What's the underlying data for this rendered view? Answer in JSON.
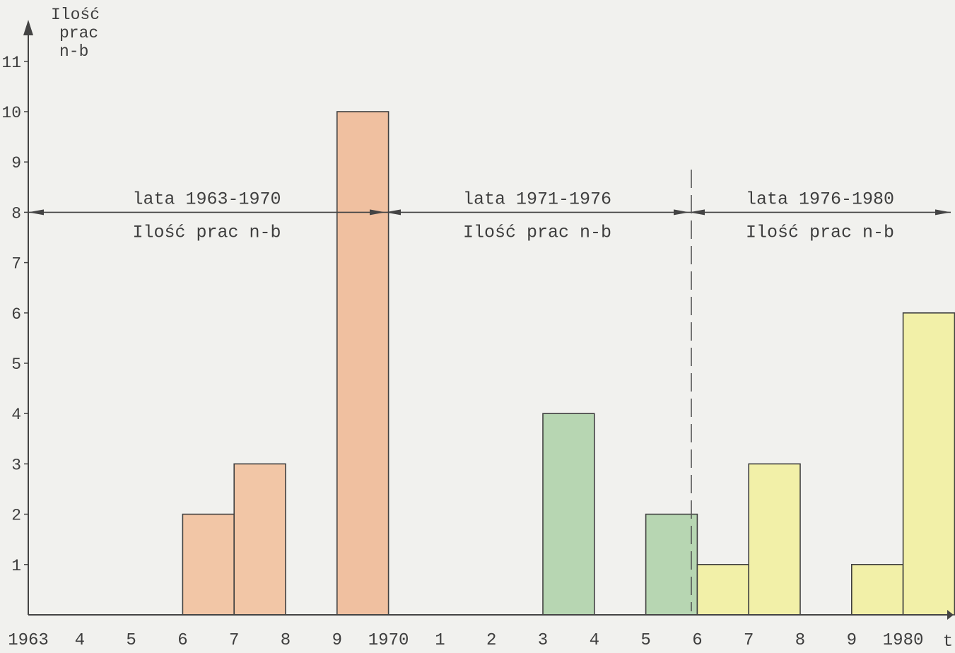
{
  "chart_data": {
    "type": "bar",
    "ylabel_lines": [
      "Ilość",
      "prac",
      "n-b"
    ],
    "xlabel": "t",
    "x_tick_labels": [
      "1963",
      "4",
      "5",
      "6",
      "7",
      "8",
      "9",
      "1970",
      "1",
      "2",
      "3",
      "4",
      "5",
      "6",
      "7",
      "8",
      "9",
      "1980"
    ],
    "y_tick_labels": [
      "1",
      "2",
      "3",
      "4",
      "5",
      "6",
      "7",
      "8",
      "9",
      "10",
      "11"
    ],
    "y_range": [
      0,
      11
    ],
    "bars": [
      {
        "year": 1967,
        "value": 2,
        "color": "#f2c6a6"
      },
      {
        "year": 1968,
        "value": 3,
        "color": "#f2c6a6"
      },
      {
        "year": 1970,
        "value": 10,
        "color": "#f0c0a0"
      },
      {
        "year": 1974,
        "value": 4,
        "color": "#b7d6b2"
      },
      {
        "year": 1976,
        "value": 2,
        "color": "#b7d6b2"
      },
      {
        "year": 1977,
        "value": 1,
        "color": "#f2f0a8"
      },
      {
        "year": 1978,
        "value": 3,
        "color": "#f2f0a8"
      },
      {
        "year": 1980,
        "value": 1,
        "color": "#f2f0a8"
      },
      {
        "year": 1981,
        "value": 6,
        "color": "#f2f0a8"
      }
    ],
    "periods": [
      {
        "label": "lata 1963-1970",
        "sublabel": "Ilość prac n-b"
      },
      {
        "label": "lata 1971-1976",
        "sublabel": "Ilość prac n-b"
      },
      {
        "label": "lata 1976-1980",
        "sublabel": "Ilość prac n-b"
      }
    ],
    "grid": false,
    "legend": "none"
  }
}
